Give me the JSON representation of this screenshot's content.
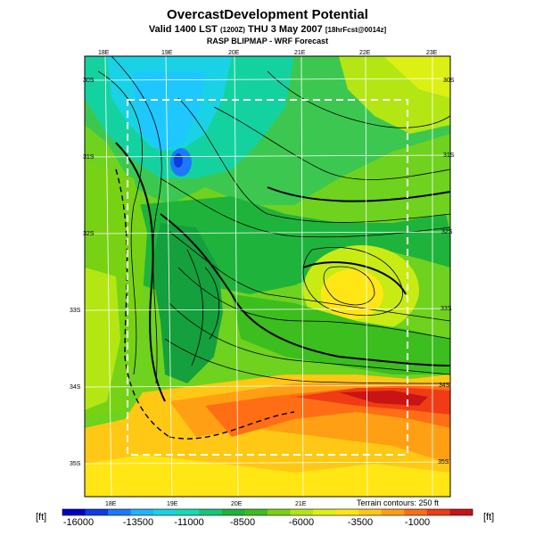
{
  "header": {
    "title": "OvercastDevelopment Potential",
    "subtitle_main": "Valid 1400 LST",
    "subtitle_time": "(1200Z)",
    "subtitle_date": "THU 3 May 2007",
    "subtitle_run": "[18hrFcst@0014z]",
    "source": "RASP BLIPMAP - WRF Forecast"
  },
  "map": {
    "top_lon_labels": [
      "18E",
      "19E",
      "20E",
      "21E",
      "22E",
      "23E"
    ],
    "bottom_lon_labels": [
      "18E",
      "19E",
      "20E",
      "21E"
    ],
    "left_lat_labels": [
      "30S",
      "31S",
      "32S",
      "33S",
      "34S",
      "35S"
    ],
    "right_lat_labels": [
      "30S",
      "31S",
      "32S",
      "33S",
      "34S",
      "35S"
    ],
    "terrain_note": "Terrain contours: 250 ft"
  },
  "colorbar": {
    "unit_left": "[ft]",
    "unit_right": "[ft]",
    "labels": [
      "-16000",
      "-13500",
      "-11000",
      "-8500",
      "-6000",
      "-3500",
      "-1000"
    ],
    "colors": [
      "#0000c8",
      "#0a3ce6",
      "#1e78ff",
      "#1eb4ff",
      "#19d2e6",
      "#14dcb4",
      "#14c878",
      "#1eb43c",
      "#3cbe1e",
      "#78d214",
      "#b4e614",
      "#dcf014",
      "#ffe614",
      "#ffc814",
      "#ffa014",
      "#ff6e14",
      "#f03c14",
      "#c81414"
    ]
  }
}
